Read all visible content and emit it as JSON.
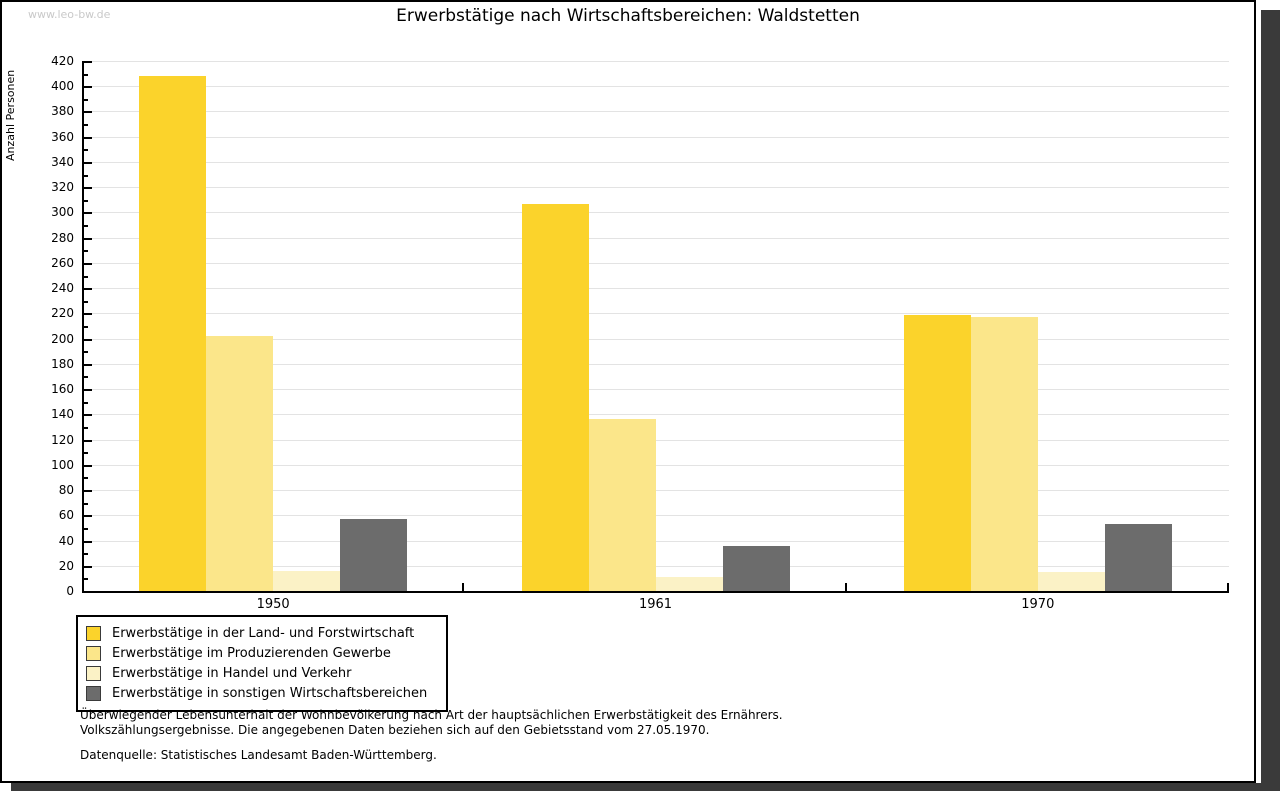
{
  "watermark": "www.leo-bw.de",
  "chart_data": {
    "type": "bar",
    "title": "Erwerbstätige nach Wirtschaftsbereichen: Waldstetten",
    "ylabel": "Anzahl Personen",
    "xlabel": "",
    "categories": [
      "1950",
      "1961",
      "1970"
    ],
    "series": [
      {
        "name": "Erwerbstätige in der Land- und Forstwirtschaft",
        "color": "#FBD32B",
        "values": [
          408,
          307,
          219
        ]
      },
      {
        "name": "Erwerbstätige im Produzierenden Gewerbe",
        "color": "#FBE68A",
        "values": [
          202,
          136,
          217
        ]
      },
      {
        "name": "Erwerbstätige in Handel und Verkehr",
        "color": "#FBF2C6",
        "values": [
          16,
          11,
          15
        ]
      },
      {
        "name": "Erwerbstätige in sonstigen Wirtschaftsbereichen",
        "color": "#6C6C6C",
        "values": [
          57,
          36,
          53
        ]
      }
    ],
    "ylim": [
      0,
      420
    ],
    "ytick_step": 20,
    "ytick_minor_step": 10,
    "grid": true,
    "legend_position": "bottom-left",
    "axis_color": "#000000",
    "grid_color": "#e3e3e3"
  },
  "footnotes": {
    "line1": "Überwiegender Lebensunterhalt der Wohnbevölkerung nach Art der hauptsächlichen Erwerbstätigkeit des Ernährers.",
    "line2": "Volkszählungsergebnisse. Die angegebenen Daten beziehen sich auf den Gebietsstand vom 27.05.1970.",
    "source": "Datenquelle: Statistisches Landesamt Baden-Württemberg."
  }
}
